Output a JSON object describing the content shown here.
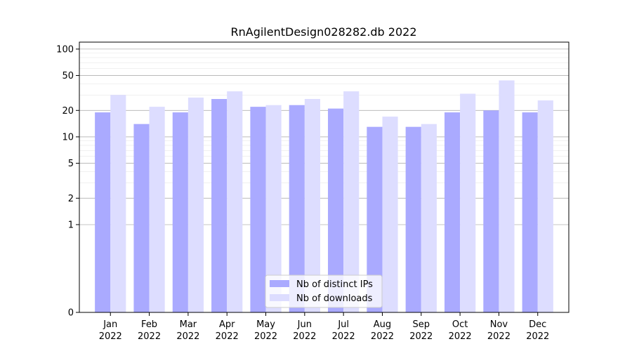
{
  "chart_data": {
    "type": "bar",
    "title": "RnAgilentDesign028282.db 2022",
    "xlabel": "",
    "ylabel": "",
    "yscale": "symlog",
    "ylim": [
      0,
      120
    ],
    "yticks": [
      0,
      1,
      2,
      5,
      10,
      20,
      50,
      100
    ],
    "ytick_labels": [
      "0",
      "1",
      "2",
      "5",
      "10",
      "20",
      "50",
      "100"
    ],
    "grid": true,
    "legend_position": "bottom-center",
    "categories": [
      [
        "Jan",
        "2022"
      ],
      [
        "Feb",
        "2022"
      ],
      [
        "Mar",
        "2022"
      ],
      [
        "Apr",
        "2022"
      ],
      [
        "May",
        "2022"
      ],
      [
        "Jun",
        "2022"
      ],
      [
        "Jul",
        "2022"
      ],
      [
        "Aug",
        "2022"
      ],
      [
        "Sep",
        "2022"
      ],
      [
        "Oct",
        "2022"
      ],
      [
        "Nov",
        "2022"
      ],
      [
        "Dec",
        "2022"
      ]
    ],
    "series": [
      {
        "name": "Nb of distinct IPs",
        "color": "#aaaaff",
        "values": [
          19,
          14,
          19,
          27,
          22,
          23,
          21,
          13,
          13,
          19,
          20,
          19
        ]
      },
      {
        "name": "Nb of downloads",
        "color": "#ddddff",
        "values": [
          30,
          22,
          28,
          33,
          23,
          27,
          33,
          17,
          14,
          31,
          44,
          26
        ]
      }
    ]
  }
}
